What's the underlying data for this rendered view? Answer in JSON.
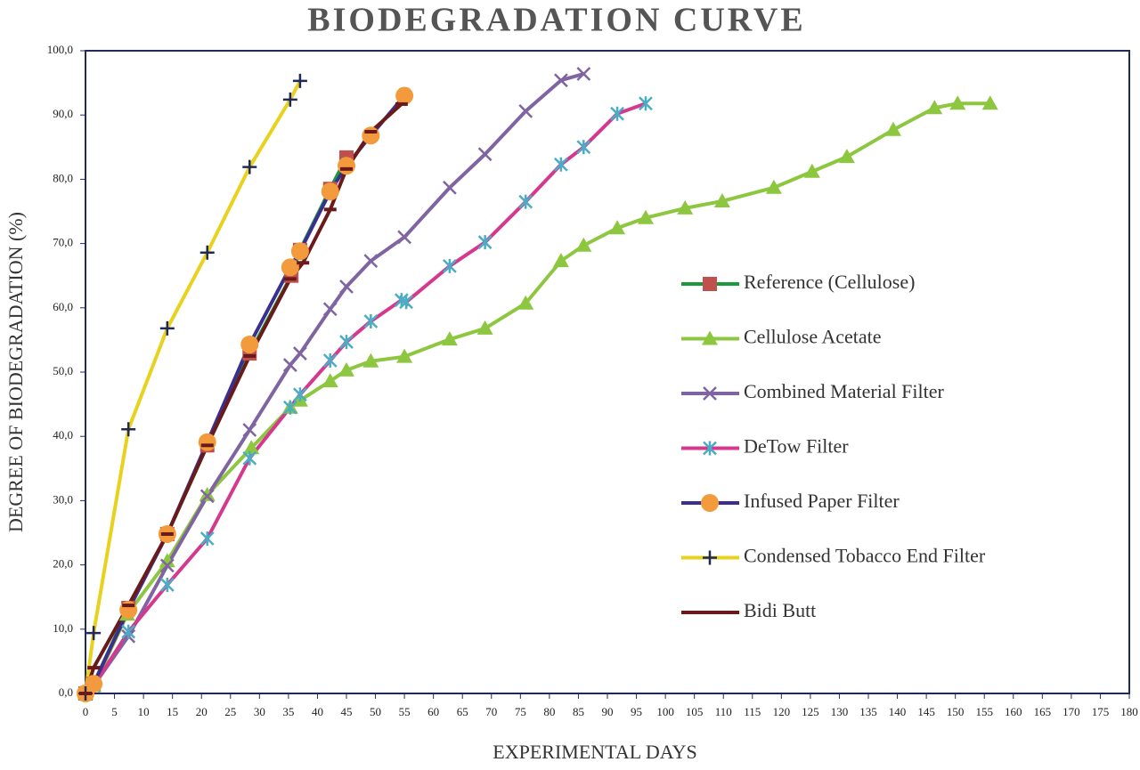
{
  "chart_data": {
    "type": "line",
    "title": "BIODEGRADATION CURVE",
    "x_label": "EXPERIMENTAL DAYS",
    "y_label": "DEGREE OF BIODEGRADATION (%)",
    "xlim": [
      0,
      180
    ],
    "xticks": [
      0,
      5,
      10,
      15,
      20,
      25,
      30,
      35,
      40,
      45,
      50,
      55,
      60,
      65,
      70,
      75,
      80,
      85,
      90,
      95,
      100,
      105,
      110,
      115,
      120,
      125,
      130,
      135,
      140,
      145,
      150,
      155,
      160,
      165,
      170,
      175,
      180
    ],
    "ylim": [
      0,
      100
    ],
    "yticks": [
      {
        "value": 0,
        "label": "0,0"
      },
      {
        "value": 10,
        "label": "10,0"
      },
      {
        "value": 20,
        "label": "20,0"
      },
      {
        "value": 30,
        "label": "30,0"
      },
      {
        "value": 40,
        "label": "40,0"
      },
      {
        "value": 50,
        "label": "50,0"
      },
      {
        "value": 60,
        "label": "60,0"
      },
      {
        "value": 70,
        "label": "70,0"
      },
      {
        "value": 80,
        "label": "80,0"
      },
      {
        "value": 90,
        "label": "90,0"
      },
      {
        "value": 100,
        "label": "100,0"
      }
    ],
    "series": [
      {
        "name": "Reference (Cellulose)",
        "color": "#1a9a3a",
        "marker_color": "#c0504d",
        "marker": "square",
        "x": [
          0,
          1.4,
          7.4,
          14.1,
          21,
          28.3,
          35.5,
          37,
          42.2,
          45
        ],
        "values": [
          0,
          1.5,
          13.3,
          24.8,
          38.6,
          52.9,
          65,
          69,
          78.5,
          83.4
        ]
      },
      {
        "name": "Cellulose Acetate",
        "color": "#8dc63f",
        "marker_color": "#8dc63f",
        "marker": "triangle",
        "x": [
          0,
          1.4,
          7.2,
          14.1,
          21,
          28.6,
          35.3,
          37,
          42.2,
          45,
          49.2,
          55,
          62.8,
          68.9,
          75.9,
          82,
          85.9,
          91.7,
          96.6,
          103.4,
          109.8,
          118.7,
          125.3,
          131.3,
          139.3,
          146.4,
          150.4,
          156
        ],
        "values": [
          0,
          1.2,
          12.3,
          20.6,
          30.9,
          38.2,
          44.5,
          45.6,
          48.6,
          50.3,
          51.7,
          52.4,
          55.1,
          56.8,
          60.7,
          67.3,
          69.7,
          72.4,
          74,
          75.5,
          76.6,
          78.7,
          81.2,
          83.5,
          87.7,
          91.1,
          91.8,
          91.8
        ]
      },
      {
        "name": "Combined Material Filter",
        "color": "#8064a2",
        "marker_color": "#8064a2",
        "marker": "x",
        "x": [
          0,
          1.4,
          7.4,
          14.1,
          21,
          28.3,
          35.3,
          37,
          42.2,
          45,
          49.2,
          55,
          62.8,
          68.9,
          75.9,
          82,
          85.9
        ],
        "values": [
          0,
          1.2,
          8.9,
          19.9,
          30.7,
          41,
          51.1,
          52.9,
          59.8,
          63.3,
          67.3,
          71,
          78.7,
          83.9,
          90.6,
          95.4,
          96.4
        ]
      },
      {
        "name": "DeTow Filter",
        "color": "#d4398e",
        "marker_color": "#4bacc6",
        "marker": "star",
        "x": [
          0,
          1.4,
          7.4,
          14.1,
          21,
          28.3,
          35.3,
          37,
          42.2,
          45,
          49.2,
          54.5,
          55.3,
          62.8,
          68.9,
          75.9,
          82,
          85.9,
          91.7,
          96.6
        ],
        "values": [
          0,
          1.2,
          9.6,
          16.9,
          24.1,
          36.6,
          44.5,
          46.5,
          51.8,
          54.7,
          57.9,
          61.2,
          60.9,
          66.5,
          70.2,
          76.5,
          82.3,
          85,
          90.2,
          91.8
        ]
      },
      {
        "name": "Infused Paper Filter",
        "color": "#3a2f8f",
        "marker_color": "#f39b3c",
        "marker": "circle",
        "x": [
          0,
          1.4,
          7.4,
          14.1,
          21,
          28.3,
          35.3,
          37,
          42.2,
          45,
          49.2,
          55
        ],
        "values": [
          0,
          1.5,
          13,
          24.8,
          39.1,
          54.3,
          66.3,
          68.8,
          78.1,
          82.1,
          86.8,
          93
        ]
      },
      {
        "name": "Condensed Tobacco End Filter",
        "color": "#e8d21d",
        "marker_color": "#1f2a5a",
        "marker": "plus",
        "x": [
          0,
          1.4,
          7.4,
          14.1,
          21,
          28.3,
          35.3,
          37
        ],
        "values": [
          0,
          9.4,
          41.1,
          56.8,
          68.6,
          81.9,
          92.4,
          95.3
        ]
      },
      {
        "name": "Bidi Butt",
        "color": "#6b1a1a",
        "marker_color": "#6b1a1a",
        "marker": "dash",
        "x": [
          0,
          1.4,
          7.4,
          14.1,
          21,
          28.3,
          35.3,
          37.5,
          42.2,
          45,
          49.2,
          54.5
        ],
        "values": [
          0,
          4,
          13.7,
          24.8,
          38.6,
          52.5,
          64.5,
          67,
          75.3,
          81.6,
          87.4,
          91.7
        ]
      }
    ]
  }
}
